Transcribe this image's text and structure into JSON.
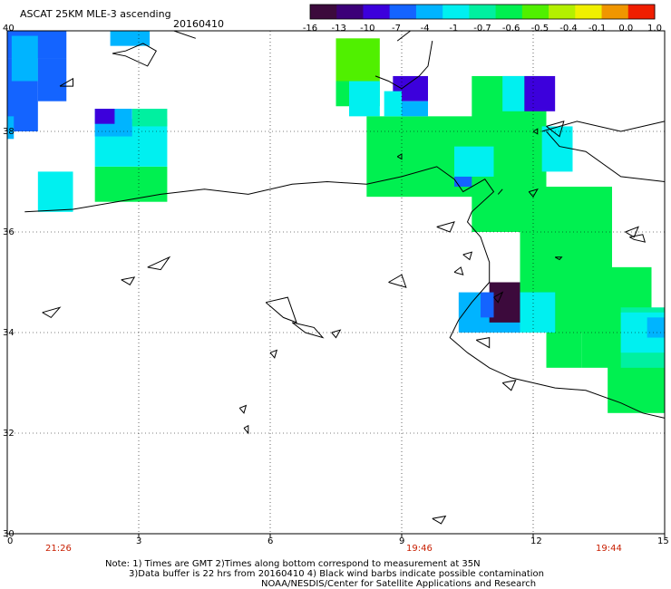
{
  "header": {
    "title": "ASCAT 25KM MLE-3 ascending",
    "date": "20160410"
  },
  "colorbar": {
    "labels": [
      "-16",
      "-13",
      "-10",
      "-7",
      "-4",
      "-1",
      "-0.7",
      "-0.6",
      "-0.5",
      "-0.4",
      "-0.1",
      "0.0",
      "1.0"
    ],
    "colors": [
      "#3c0a3c",
      "#3c0078",
      "#3c00dc",
      "#1464ff",
      "#00b4ff",
      "#00f0f0",
      "#00f0a0",
      "#00f050",
      "#50f000",
      "#b4f000",
      "#f0f000",
      "#f09600",
      "#f01e00"
    ]
  },
  "axes": {
    "lon_ticks": [
      "0",
      "3",
      "6",
      "9",
      "12",
      "15"
    ],
    "lat_ticks": [
      "40",
      "38",
      "36",
      "34",
      "32",
      "30"
    ],
    "lon_range": [
      0,
      15
    ],
    "lat_range": [
      30,
      40
    ]
  },
  "times": [
    "21:26",
    "19:46",
    "19:44"
  ],
  "notes": {
    "line1": "Note: 1) Times are GMT 2)Times along bottom correspond to measurement at 35N",
    "line2": "3)Data buffer is 22 hrs from 20160410 4) Black wind barbs indicate possible contamination",
    "line3": "NOAA/NESDIS/Center for Satellite Applications and Research"
  },
  "chart_data": {
    "type": "heatmap",
    "xlim": [
      0,
      15
    ],
    "ylim": [
      30,
      40
    ],
    "grid": true,
    "cells": [
      {
        "x0": 0.0,
        "y0": 39.45,
        "x1": 1.35,
        "y1": 40.0,
        "color": "#1464ff"
      },
      {
        "x0": 0.0,
        "y0": 38.0,
        "x1": 0.7,
        "y1": 39.45,
        "color": "#1464ff"
      },
      {
        "x0": 0.0,
        "y0": 37.85,
        "x1": 0.15,
        "y1": 38.3,
        "color": "#00b4ff"
      },
      {
        "x0": 0.7,
        "y0": 38.6,
        "x1": 1.35,
        "y1": 39.45,
        "color": "#1464ff"
      },
      {
        "x0": 0.1,
        "y0": 39.0,
        "x1": 0.7,
        "y1": 39.9,
        "color": "#00b4ff"
      },
      {
        "x0": 2.35,
        "y0": 39.7,
        "x1": 3.25,
        "y1": 40.0,
        "color": "#00b4ff"
      },
      {
        "x0": 0.7,
        "y0": 36.4,
        "x1": 1.5,
        "y1": 37.2,
        "color": "#00f0f0"
      },
      {
        "x0": 2.0,
        "y0": 36.6,
        "x1": 3.65,
        "y1": 37.3,
        "color": "#00f050"
      },
      {
        "x0": 2.0,
        "y0": 37.3,
        "x1": 3.65,
        "y1": 38.25,
        "color": "#00f0f0"
      },
      {
        "x0": 2.0,
        "y0": 37.9,
        "x1": 2.85,
        "y1": 38.45,
        "color": "#00b4ff"
      },
      {
        "x0": 2.0,
        "y0": 38.15,
        "x1": 2.45,
        "y1": 38.45,
        "color": "#3c00dc"
      },
      {
        "x0": 2.85,
        "y0": 38.1,
        "x1": 3.65,
        "y1": 38.45,
        "color": "#00f0a0"
      },
      {
        "x0": 7.5,
        "y0": 39.0,
        "x1": 8.5,
        "y1": 39.85,
        "color": "#50f000"
      },
      {
        "x0": 7.5,
        "y0": 38.5,
        "x1": 8.5,
        "y1": 39.0,
        "color": "#00f050"
      },
      {
        "x0": 7.8,
        "y0": 38.3,
        "x1": 8.5,
        "y1": 39.0,
        "color": "#00f0f0"
      },
      {
        "x0": 8.2,
        "y0": 36.7,
        "x1": 11.9,
        "y1": 38.3,
        "color": "#00f050"
      },
      {
        "x0": 10.6,
        "y0": 36.0,
        "x1": 12.3,
        "y1": 39.1,
        "color": "#00f050"
      },
      {
        "x0": 8.8,
        "y0": 38.6,
        "x1": 9.6,
        "y1": 39.1,
        "color": "#3c00dc"
      },
      {
        "x0": 8.6,
        "y0": 38.3,
        "x1": 9.0,
        "y1": 38.8,
        "color": "#00f0f0"
      },
      {
        "x0": 9.0,
        "y0": 38.3,
        "x1": 9.6,
        "y1": 38.6,
        "color": "#00b4ff"
      },
      {
        "x0": 11.3,
        "y0": 38.4,
        "x1": 11.8,
        "y1": 39.1,
        "color": "#00f0f0"
      },
      {
        "x0": 11.8,
        "y0": 38.4,
        "x1": 12.5,
        "y1": 39.1,
        "color": "#3c00dc"
      },
      {
        "x0": 10.2,
        "y0": 37.1,
        "x1": 11.1,
        "y1": 37.7,
        "color": "#00f0f0"
      },
      {
        "x0": 10.2,
        "y0": 36.9,
        "x1": 10.6,
        "y1": 37.1,
        "color": "#1464ff"
      },
      {
        "x0": 12.2,
        "y0": 37.2,
        "x1": 12.9,
        "y1": 38.1,
        "color": "#00f0f0"
      },
      {
        "x0": 11.7,
        "y0": 34.0,
        "x1": 13.8,
        "y1": 36.9,
        "color": "#00f050"
      },
      {
        "x0": 12.3,
        "y0": 33.3,
        "x1": 13.1,
        "y1": 34.3,
        "color": "#00f050"
      },
      {
        "x0": 13.1,
        "y0": 33.3,
        "x1": 14.7,
        "y1": 35.3,
        "color": "#00f050"
      },
      {
        "x0": 13.7,
        "y0": 32.4,
        "x1": 15.0,
        "y1": 33.8,
        "color": "#00f050"
      },
      {
        "x0": 14.0,
        "y0": 33.3,
        "x1": 15.0,
        "y1": 34.5,
        "color": "#00f0a0"
      },
      {
        "x0": 14.0,
        "y0": 33.6,
        "x1": 15.0,
        "y1": 34.4,
        "color": "#00f0f0"
      },
      {
        "x0": 14.6,
        "y0": 33.9,
        "x1": 15.0,
        "y1": 34.3,
        "color": "#00b4ff"
      },
      {
        "x0": 10.3,
        "y0": 34.0,
        "x1": 12.5,
        "y1": 34.8,
        "color": "#00b4ff"
      },
      {
        "x0": 11.7,
        "y0": 34.0,
        "x1": 12.5,
        "y1": 34.8,
        "color": "#00f0f0"
      },
      {
        "x0": 11.0,
        "y0": 34.2,
        "x1": 11.7,
        "y1": 35.0,
        "color": "#3c0a3c"
      },
      {
        "x0": 10.8,
        "y0": 34.3,
        "x1": 11.1,
        "y1": 34.8,
        "color": "#1464ff"
      }
    ],
    "coastlines": [
      {
        "name": "north-africa-coast",
        "points": [
          [
            0.4,
            36.4
          ],
          [
            1.5,
            36.45
          ],
          [
            2.5,
            36.6
          ],
          [
            3.5,
            36.75
          ],
          [
            4.5,
            36.85
          ],
          [
            5.5,
            36.75
          ],
          [
            6.5,
            36.95
          ],
          [
            7.3,
            37.0
          ],
          [
            8.2,
            36.95
          ],
          [
            9.0,
            37.1
          ],
          [
            9.8,
            37.3
          ],
          [
            10.2,
            37.05
          ],
          [
            10.4,
            36.8
          ],
          [
            10.9,
            37.05
          ],
          [
            11.1,
            36.8
          ],
          [
            10.6,
            36.4
          ],
          [
            10.5,
            36.2
          ],
          [
            10.8,
            35.9
          ],
          [
            11.0,
            35.4
          ],
          [
            11.0,
            35.0
          ],
          [
            10.6,
            34.6
          ],
          [
            10.3,
            34.25
          ],
          [
            10.1,
            33.9
          ],
          [
            10.5,
            33.6
          ],
          [
            11.0,
            33.3
          ],
          [
            11.5,
            33.1
          ],
          [
            12.5,
            32.9
          ],
          [
            13.2,
            32.85
          ],
          [
            14.0,
            32.6
          ],
          [
            14.5,
            32.4
          ],
          [
            15.0,
            32.3
          ]
        ]
      },
      {
        "name": "italy-coast",
        "points": [
          [
            8.9,
            39.8
          ],
          [
            9.2,
            40.0
          ]
        ]
      },
      {
        "name": "italy-south-coast",
        "points": [
          [
            12.3,
            38.0
          ],
          [
            12.6,
            37.7
          ],
          [
            13.2,
            37.6
          ],
          [
            14.0,
            37.1
          ],
          [
            15.0,
            37.0
          ]
        ]
      },
      {
        "name": "italy-north-coast",
        "points": [
          [
            12.2,
            38.0
          ],
          [
            13.0,
            38.2
          ],
          [
            14.0,
            38.0
          ],
          [
            15.0,
            38.2
          ]
        ]
      },
      {
        "name": "sardinia-south-coast",
        "points": [
          [
            8.4,
            39.1
          ],
          [
            8.7,
            39.0
          ],
          [
            9.0,
            38.85
          ],
          [
            9.4,
            39.1
          ],
          [
            9.6,
            39.3
          ],
          [
            9.7,
            39.8
          ]
        ]
      },
      {
        "name": "mallorca-coast",
        "points": [
          [
            2.4,
            39.55
          ],
          [
            2.7,
            39.6
          ],
          [
            3.1,
            39.75
          ],
          [
            3.4,
            39.6
          ],
          [
            3.2,
            39.3
          ],
          [
            2.7,
            39.5
          ],
          [
            2.4,
            39.55
          ]
        ]
      },
      {
        "name": "menorca-coast",
        "points": [
          [
            3.8,
            40.0
          ],
          [
            4.3,
            39.85
          ]
        ]
      },
      {
        "name": "crete-west-coast",
        "points": [
          [
            11.2,
            36.75
          ],
          [
            11.3,
            36.85
          ]
        ]
      }
    ],
    "islands": [
      {
        "name": "balearic-ibiza",
        "points": [
          [
            1.2,
            38.9
          ],
          [
            1.5,
            39.05
          ],
          [
            1.5,
            38.9
          ],
          [
            1.2,
            38.9
          ]
        ]
      },
      {
        "name": "pantelleria",
        "points": [
          [
            11.9,
            36.8
          ],
          [
            12.1,
            36.85
          ],
          [
            12.0,
            36.7
          ],
          [
            11.9,
            36.8
          ]
        ]
      },
      {
        "name": "malta",
        "points": [
          [
            14.2,
            35.9
          ],
          [
            14.5,
            35.95
          ],
          [
            14.55,
            35.8
          ],
          [
            14.3,
            35.85
          ],
          [
            14.2,
            35.9
          ]
        ]
      },
      {
        "name": "lampedusa",
        "points": [
          [
            12.5,
            35.5
          ],
          [
            12.65,
            35.5
          ],
          [
            12.6,
            35.45
          ],
          [
            12.5,
            35.5
          ]
        ]
      },
      {
        "name": "kerkennah",
        "points": [
          [
            11.1,
            34.7
          ],
          [
            11.3,
            34.8
          ],
          [
            11.2,
            34.6
          ],
          [
            11.1,
            34.7
          ]
        ]
      },
      {
        "name": "djerba",
        "points": [
          [
            10.7,
            33.85
          ],
          [
            11.0,
            33.9
          ],
          [
            11.0,
            33.7
          ],
          [
            10.7,
            33.85
          ]
        ]
      },
      {
        "name": "galite",
        "points": [
          [
            8.9,
            37.5
          ],
          [
            9.0,
            37.55
          ],
          [
            9.0,
            37.45
          ],
          [
            8.9,
            37.5
          ]
        ]
      },
      {
        "name": "aegadian",
        "points": [
          [
            12.0,
            38.0
          ],
          [
            12.1,
            38.05
          ],
          [
            12.1,
            37.95
          ],
          [
            12.0,
            38.0
          ]
        ]
      },
      {
        "name": "sicily-west",
        "points": [
          [
            12.3,
            38.1
          ],
          [
            12.7,
            38.2
          ],
          [
            12.6,
            37.9
          ],
          [
            12.3,
            38.1
          ]
        ]
      },
      {
        "name": "islet-a",
        "points": [
          [
            3.2,
            35.3
          ],
          [
            3.7,
            35.5
          ],
          [
            3.5,
            35.25
          ],
          [
            3.2,
            35.3
          ]
        ]
      },
      {
        "name": "islet-b",
        "points": [
          [
            2.6,
            35.05
          ],
          [
            2.9,
            35.1
          ],
          [
            2.8,
            34.95
          ],
          [
            2.6,
            35.05
          ]
        ]
      },
      {
        "name": "islet-c",
        "points": [
          [
            0.8,
            34.4
          ],
          [
            1.2,
            34.5
          ],
          [
            1.0,
            34.3
          ],
          [
            0.8,
            34.4
          ]
        ]
      },
      {
        "name": "islet-d",
        "points": [
          [
            5.9,
            34.6
          ],
          [
            6.4,
            34.7
          ],
          [
            6.6,
            34.2
          ],
          [
            6.3,
            34.3
          ],
          [
            5.9,
            34.6
          ]
        ]
      },
      {
        "name": "islet-e",
        "points": [
          [
            8.7,
            35.0
          ],
          [
            9.0,
            35.15
          ],
          [
            9.1,
            34.9
          ],
          [
            8.7,
            35.0
          ]
        ]
      },
      {
        "name": "islet-f",
        "points": [
          [
            10.2,
            35.2
          ],
          [
            10.35,
            35.3
          ],
          [
            10.4,
            35.15
          ],
          [
            10.2,
            35.2
          ]
        ]
      },
      {
        "name": "islet-g",
        "points": [
          [
            10.4,
            35.55
          ],
          [
            10.6,
            35.6
          ],
          [
            10.55,
            35.45
          ],
          [
            10.4,
            35.55
          ]
        ]
      },
      {
        "name": "islet-h",
        "points": [
          [
            6.0,
            33.6
          ],
          [
            6.15,
            33.65
          ],
          [
            6.1,
            33.5
          ],
          [
            6.0,
            33.6
          ]
        ]
      },
      {
        "name": "islet-i",
        "points": [
          [
            5.3,
            32.5
          ],
          [
            5.45,
            32.55
          ],
          [
            5.4,
            32.4
          ],
          [
            5.3,
            32.5
          ]
        ]
      },
      {
        "name": "islet-j",
        "points": [
          [
            5.4,
            32.1
          ],
          [
            5.5,
            32.15
          ],
          [
            5.5,
            32.0
          ],
          [
            5.4,
            32.1
          ]
        ]
      },
      {
        "name": "islet-k",
        "points": [
          [
            9.7,
            30.3
          ],
          [
            10.0,
            30.35
          ],
          [
            9.9,
            30.2
          ],
          [
            9.7,
            30.3
          ]
        ]
      },
      {
        "name": "islet-l",
        "points": [
          [
            11.3,
            33.0
          ],
          [
            11.6,
            33.05
          ],
          [
            11.5,
            32.85
          ],
          [
            11.3,
            33.0
          ]
        ]
      },
      {
        "name": "islet-m",
        "points": [
          [
            9.8,
            36.1
          ],
          [
            10.2,
            36.2
          ],
          [
            10.1,
            36.0
          ],
          [
            9.8,
            36.1
          ]
        ]
      },
      {
        "name": "islet-n",
        "points": [
          [
            14.1,
            36.0
          ],
          [
            14.4,
            36.1
          ],
          [
            14.3,
            35.9
          ],
          [
            14.1,
            36.0
          ]
        ]
      },
      {
        "name": "islet-o",
        "points": [
          [
            6.5,
            34.2
          ],
          [
            7.0,
            34.1
          ],
          [
            7.2,
            33.9
          ],
          [
            6.8,
            34.0
          ],
          [
            6.5,
            34.2
          ]
        ]
      },
      {
        "name": "islet-p",
        "points": [
          [
            7.4,
            34.0
          ],
          [
            7.6,
            34.05
          ],
          [
            7.5,
            33.9
          ],
          [
            7.4,
            34.0
          ]
        ]
      }
    ]
  }
}
